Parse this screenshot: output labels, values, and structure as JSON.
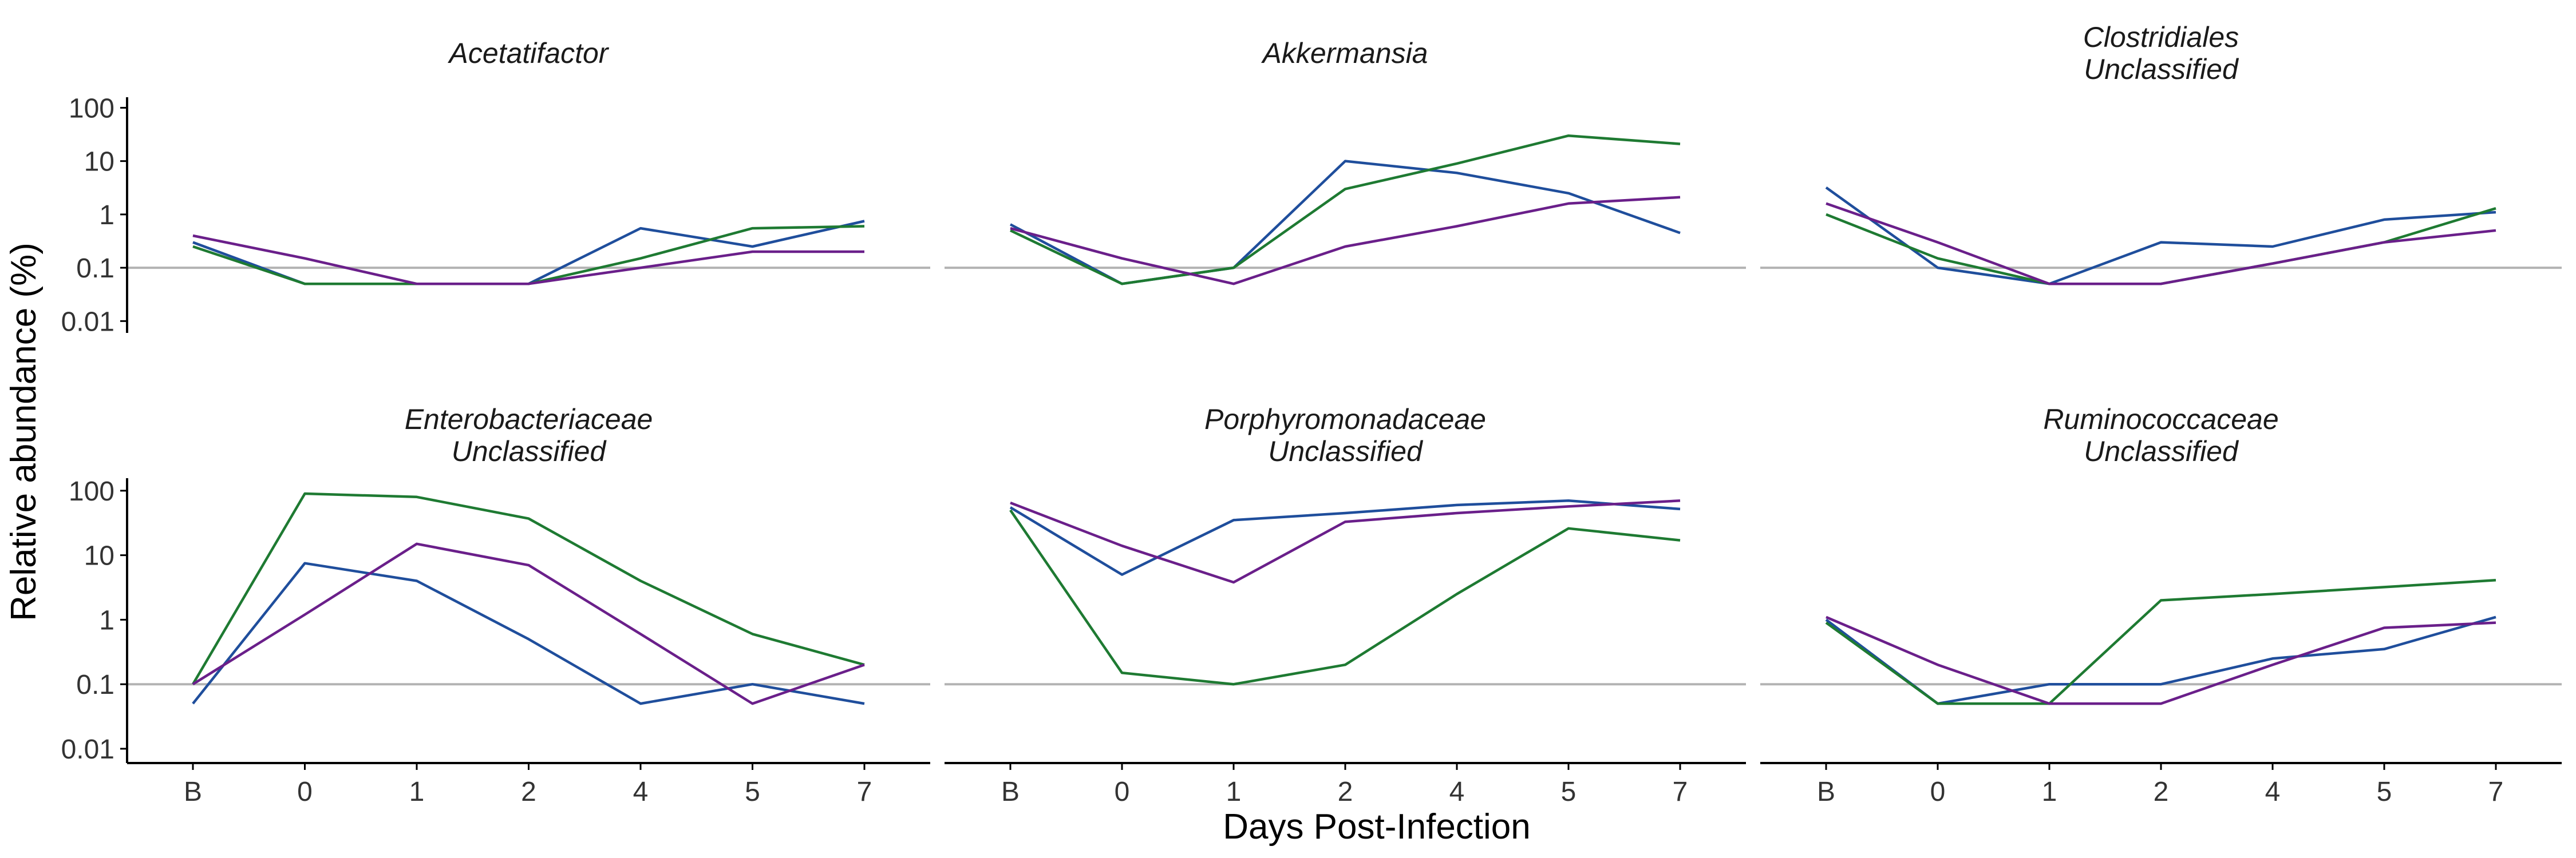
{
  "chart_data": {
    "type": "line",
    "facet_layout": "2x3",
    "xlabel": "Days Post-Infection",
    "ylabel": "Relative abundance (%)",
    "x_categories": [
      "B",
      "0",
      "1",
      "2",
      "4",
      "5",
      "7"
    ],
    "y_scale": "log10",
    "ylim": [
      0.006,
      150
    ],
    "y_ticks": [
      0.01,
      0.1,
      1,
      10,
      100
    ],
    "y_tick_labels": [
      "0.01",
      "0.1",
      "1",
      "10",
      "100"
    ],
    "reference_line": 0.1,
    "grid": false,
    "legend": "none",
    "series_colors": [
      "#1f4e9c",
      "#1e7a32",
      "#6a1f8a"
    ],
    "panels": [
      {
        "title": [
          "Acetatifactor"
        ],
        "series": [
          {
            "color": "#1f4e9c",
            "values": [
              0.3,
              0.05,
              0.05,
              0.05,
              0.55,
              0.25,
              0.75
            ]
          },
          {
            "color": "#1e7a32",
            "values": [
              0.25,
              0.05,
              0.05,
              0.05,
              0.15,
              0.55,
              0.6
            ]
          },
          {
            "color": "#6a1f8a",
            "values": [
              0.4,
              0.15,
              0.05,
              0.05,
              0.1,
              0.2,
              0.2
            ]
          }
        ]
      },
      {
        "title": [
          "Akkermansia"
        ],
        "series": [
          {
            "color": "#1f4e9c",
            "values": [
              0.65,
              0.05,
              0.1,
              10,
              6,
              2.5,
              0.45
            ]
          },
          {
            "color": "#1e7a32",
            "values": [
              0.5,
              0.05,
              0.1,
              3,
              9,
              30,
              21
            ]
          },
          {
            "color": "#6a1f8a",
            "values": [
              0.55,
              0.15,
              0.05,
              0.25,
              0.6,
              1.6,
              2.1
            ]
          }
        ]
      },
      {
        "title": [
          "Clostridiales",
          "Unclassified"
        ],
        "series": [
          {
            "color": "#1f4e9c",
            "values": [
              3.2,
              0.1,
              0.05,
              0.3,
              0.25,
              0.8,
              1.1
            ]
          },
          {
            "color": "#1e7a32",
            "values": [
              1,
              0.15,
              0.05,
              0.05,
              0.12,
              0.3,
              1.3
            ]
          },
          {
            "color": "#6a1f8a",
            "values": [
              1.6,
              0.3,
              0.05,
              0.05,
              0.12,
              0.3,
              0.5
            ]
          }
        ]
      },
      {
        "title": [
          "Enterobacteriaceae",
          "Unclassified"
        ],
        "series": [
          {
            "color": "#1f4e9c",
            "values": [
              0.05,
              7.5,
              4,
              0.5,
              0.05,
              0.1,
              0.05
            ]
          },
          {
            "color": "#1e7a32",
            "values": [
              0.1,
              90,
              80,
              37,
              4,
              0.6,
              0.2
            ]
          },
          {
            "color": "#6a1f8a",
            "values": [
              0.1,
              1.2,
              15,
              7,
              0.6,
              0.05,
              0.2
            ]
          }
        ]
      },
      {
        "title": [
          "Porphyromonadaceae",
          "Unclassified"
        ],
        "series": [
          {
            "color": "#1f4e9c",
            "values": [
              55,
              5,
              35,
              45,
              60,
              70,
              52
            ]
          },
          {
            "color": "#1e7a32",
            "values": [
              50,
              0.15,
              0.1,
              0.2,
              2.5,
              26,
              17
            ]
          },
          {
            "color": "#6a1f8a",
            "values": [
              65,
              14,
              3.8,
              33,
              45,
              57,
              70
            ]
          }
        ]
      },
      {
        "title": [
          "Ruminococcaceae",
          "Unclassified"
        ],
        "series": [
          {
            "color": "#1f4e9c",
            "values": [
              1,
              0.05,
              0.1,
              0.1,
              0.25,
              0.35,
              1.1
            ]
          },
          {
            "color": "#1e7a32",
            "values": [
              0.9,
              0.05,
              0.05,
              2,
              2.5,
              3.2,
              4.1
            ]
          },
          {
            "color": "#6a1f8a",
            "values": [
              1.1,
              0.2,
              0.05,
              0.05,
              0.2,
              0.75,
              0.9
            ]
          }
        ]
      }
    ]
  }
}
